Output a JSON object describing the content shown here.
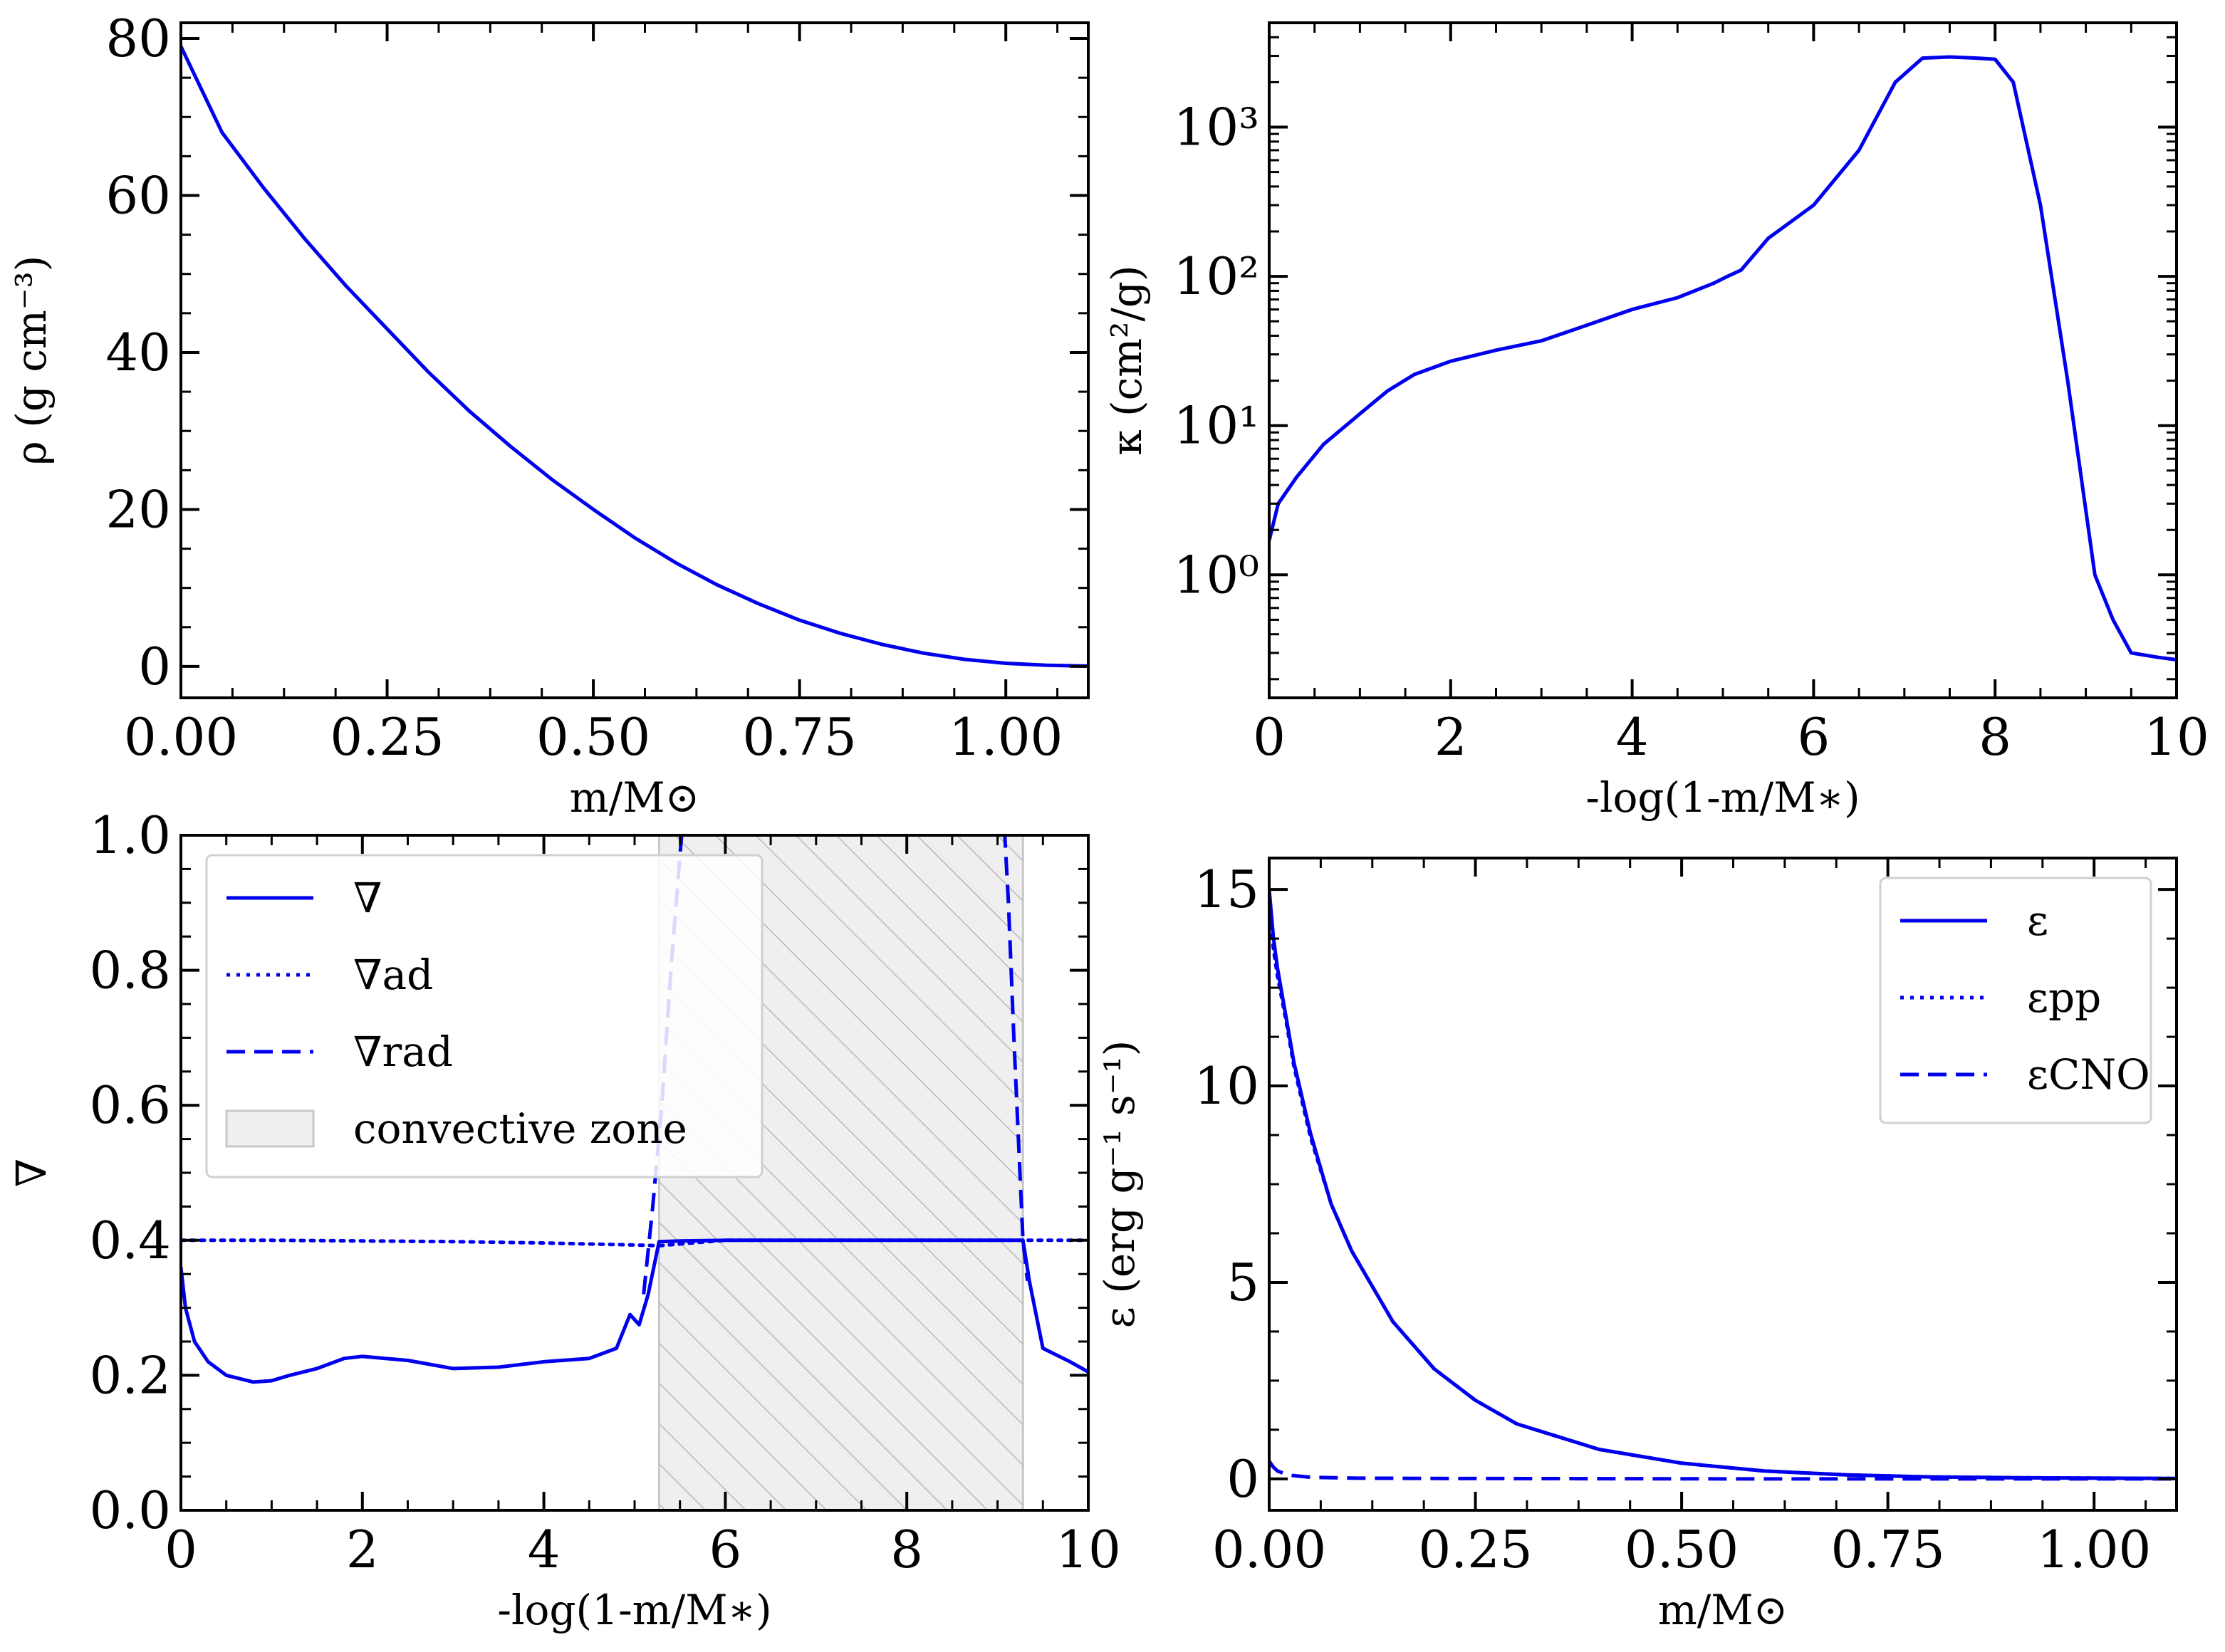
{
  "chart_data": [
    {
      "id": "density",
      "type": "line",
      "xlabel": "m/M⊙",
      "ylabel": "ρ (g cm⁻³)",
      "xlim": [
        0,
        1.1
      ],
      "ylim": [
        -4,
        82
      ],
      "xticks": [
        "0.00",
        "0.25",
        "0.50",
        "0.75",
        "1.00"
      ],
      "yticks": [
        "0",
        "20",
        "40",
        "60",
        "80"
      ],
      "series": [
        {
          "color": "#0000ee",
          "style": "solid",
          "x": [
            0.0,
            0.05,
            0.1,
            0.15,
            0.2,
            0.25,
            0.3,
            0.35,
            0.4,
            0.45,
            0.5,
            0.55,
            0.6,
            0.65,
            0.7,
            0.75,
            0.8,
            0.85,
            0.9,
            0.95,
            1.0,
            1.05,
            1.1
          ],
          "y": [
            79,
            68,
            61,
            54.5,
            48.5,
            43,
            37.5,
            32.5,
            28,
            23.8,
            20,
            16.4,
            13.2,
            10.4,
            8.0,
            5.9,
            4.2,
            2.8,
            1.7,
            0.9,
            0.4,
            0.15,
            0.05
          ]
        }
      ]
    },
    {
      "id": "opacity",
      "type": "line",
      "xlabel": "-log(1-m/M∗)",
      "ylabel": "κ (cm²/g)",
      "xlim": [
        0,
        10
      ],
      "ylog": true,
      "ylim": [
        0.15,
        5000
      ],
      "xticks": [
        "0",
        "2",
        "4",
        "6",
        "8",
        "10"
      ],
      "yticks": [
        "10⁰",
        "10¹",
        "10²",
        "10³"
      ],
      "series": [
        {
          "color": "#0000ee",
          "style": "solid",
          "x": [
            0.0,
            0.1,
            0.3,
            0.6,
            1.0,
            1.3,
            1.6,
            2.0,
            2.5,
            3.0,
            3.5,
            4.0,
            4.5,
            4.9,
            5.05,
            5.2,
            5.5,
            6.0,
            6.5,
            6.9,
            7.2,
            7.5,
            7.8,
            8.0,
            8.2,
            8.5,
            8.8,
            9.1,
            9.3,
            9.5,
            9.8,
            10.0
          ],
          "y": [
            1.7,
            3.0,
            4.5,
            7.5,
            12,
            17,
            22,
            27,
            32,
            37,
            47,
            60,
            72,
            90,
            100,
            110,
            180,
            300,
            700,
            2000,
            2900,
            2950,
            2900,
            2850,
            2000,
            300,
            20,
            1.0,
            0.5,
            0.3,
            0.28,
            0.27
          ]
        }
      ]
    },
    {
      "id": "gradients",
      "type": "line",
      "xlabel": "-log(1-m/M∗)",
      "ylabel": "∇",
      "xlim": [
        0,
        10
      ],
      "ylim": [
        0,
        1
      ],
      "xticks": [
        "0",
        "2",
        "4",
        "6",
        "8",
        "10"
      ],
      "yticks": [
        "0.0",
        "0.2",
        "0.4",
        "0.6",
        "0.8",
        "1.0"
      ],
      "legend": {
        "position": "upper-left",
        "entries": [
          "∇",
          "∇ad",
          "∇rad",
          "convective zone"
        ]
      },
      "convective_zone": [
        5.27,
        9.28
      ],
      "series": [
        {
          "name": "∇",
          "color": "#0000ee",
          "style": "solid",
          "x": [
            0.0,
            0.05,
            0.15,
            0.3,
            0.5,
            0.8,
            1.0,
            1.2,
            1.5,
            1.8,
            2.0,
            2.5,
            3.0,
            3.5,
            4.0,
            4.5,
            4.8,
            4.95,
            5.05,
            5.15,
            5.27,
            5.5,
            6.0,
            7.0,
            8.0,
            9.0,
            9.28,
            9.35,
            9.5,
            9.8,
            10.0
          ],
          "y": [
            0.36,
            0.3,
            0.25,
            0.22,
            0.2,
            0.19,
            0.192,
            0.2,
            0.21,
            0.225,
            0.228,
            0.222,
            0.21,
            0.212,
            0.22,
            0.225,
            0.24,
            0.29,
            0.275,
            0.32,
            0.398,
            0.399,
            0.4,
            0.4,
            0.4,
            0.4,
            0.4,
            0.34,
            0.24,
            0.22,
            0.205
          ]
        },
        {
          "name": "∇ad",
          "color": "#0000ee",
          "style": "dotted",
          "x": [
            0.0,
            1.0,
            2.0,
            3.0,
            4.0,
            5.0,
            5.27,
            6.0,
            7.0,
            8.0,
            9.0,
            9.28,
            10.0
          ],
          "y": [
            0.4,
            0.4,
            0.399,
            0.398,
            0.396,
            0.393,
            0.392,
            0.4,
            0.4,
            0.4,
            0.4,
            0.4,
            0.4
          ]
        },
        {
          "name": "∇rad",
          "color": "#0000ee",
          "style": "dashed",
          "x": [
            5.1,
            5.2,
            5.3,
            5.4,
            5.5,
            5.55
          ],
          "y": [
            0.32,
            0.45,
            0.6,
            0.8,
            0.97,
            1.05
          ],
          "x2": [
            9.06,
            9.12,
            9.18,
            9.23,
            9.28,
            9.33
          ],
          "y2": [
            1.05,
            0.9,
            0.7,
            0.55,
            0.4,
            0.34
          ]
        }
      ]
    },
    {
      "id": "energy",
      "type": "line",
      "xlabel": "m/M⊙",
      "ylabel": "ε (erg g⁻¹ s⁻¹)",
      "xlim": [
        0,
        1.1
      ],
      "ylim": [
        -0.8,
        15.8
      ],
      "xticks": [
        "0.00",
        "0.25",
        "0.50",
        "0.75",
        "1.00"
      ],
      "yticks": [
        "0",
        "5",
        "10",
        "15"
      ],
      "legend": {
        "position": "upper-right",
        "entries": [
          "ε",
          "εpp",
          "εCNO"
        ]
      },
      "series": [
        {
          "name": "ε",
          "color": "#0000ee",
          "style": "solid",
          "x": [
            0.0,
            0.005,
            0.01,
            0.02,
            0.03,
            0.05,
            0.075,
            0.1,
            0.15,
            0.2,
            0.25,
            0.3,
            0.4,
            0.5,
            0.6,
            0.7,
            0.8,
            0.9,
            1.0,
            1.1
          ],
          "y": [
            15.0,
            13.8,
            13.0,
            11.8,
            10.6,
            8.8,
            7.0,
            5.8,
            4.0,
            2.8,
            2.0,
            1.4,
            0.75,
            0.4,
            0.2,
            0.1,
            0.05,
            0.03,
            0.02,
            0.01
          ]
        },
        {
          "name": "εpp",
          "color": "#0000ee",
          "style": "dotted",
          "x": [
            0.0,
            0.005,
            0.01,
            0.02,
            0.03,
            0.05,
            0.075,
            0.1,
            0.15,
            0.2,
            0.25,
            0.3,
            0.4,
            0.5,
            0.6,
            0.7,
            0.8,
            0.9,
            1.0,
            1.1
          ],
          "y": [
            14.6,
            13.5,
            12.8,
            11.7,
            10.5,
            8.7,
            7.0,
            5.8,
            4.0,
            2.8,
            2.0,
            1.4,
            0.75,
            0.4,
            0.2,
            0.1,
            0.05,
            0.03,
            0.02,
            0.01
          ]
        },
        {
          "name": "εCNO",
          "color": "#0000ee",
          "style": "dashed",
          "x": [
            0.0,
            0.005,
            0.01,
            0.02,
            0.03,
            0.05,
            0.1,
            0.2,
            0.4,
            0.6,
            0.8,
            1.0,
            1.1
          ],
          "y": [
            0.45,
            0.3,
            0.2,
            0.12,
            0.08,
            0.04,
            0.02,
            0.01,
            0.005,
            0.0,
            0.0,
            0.0,
            0.0
          ]
        }
      ]
    }
  ]
}
